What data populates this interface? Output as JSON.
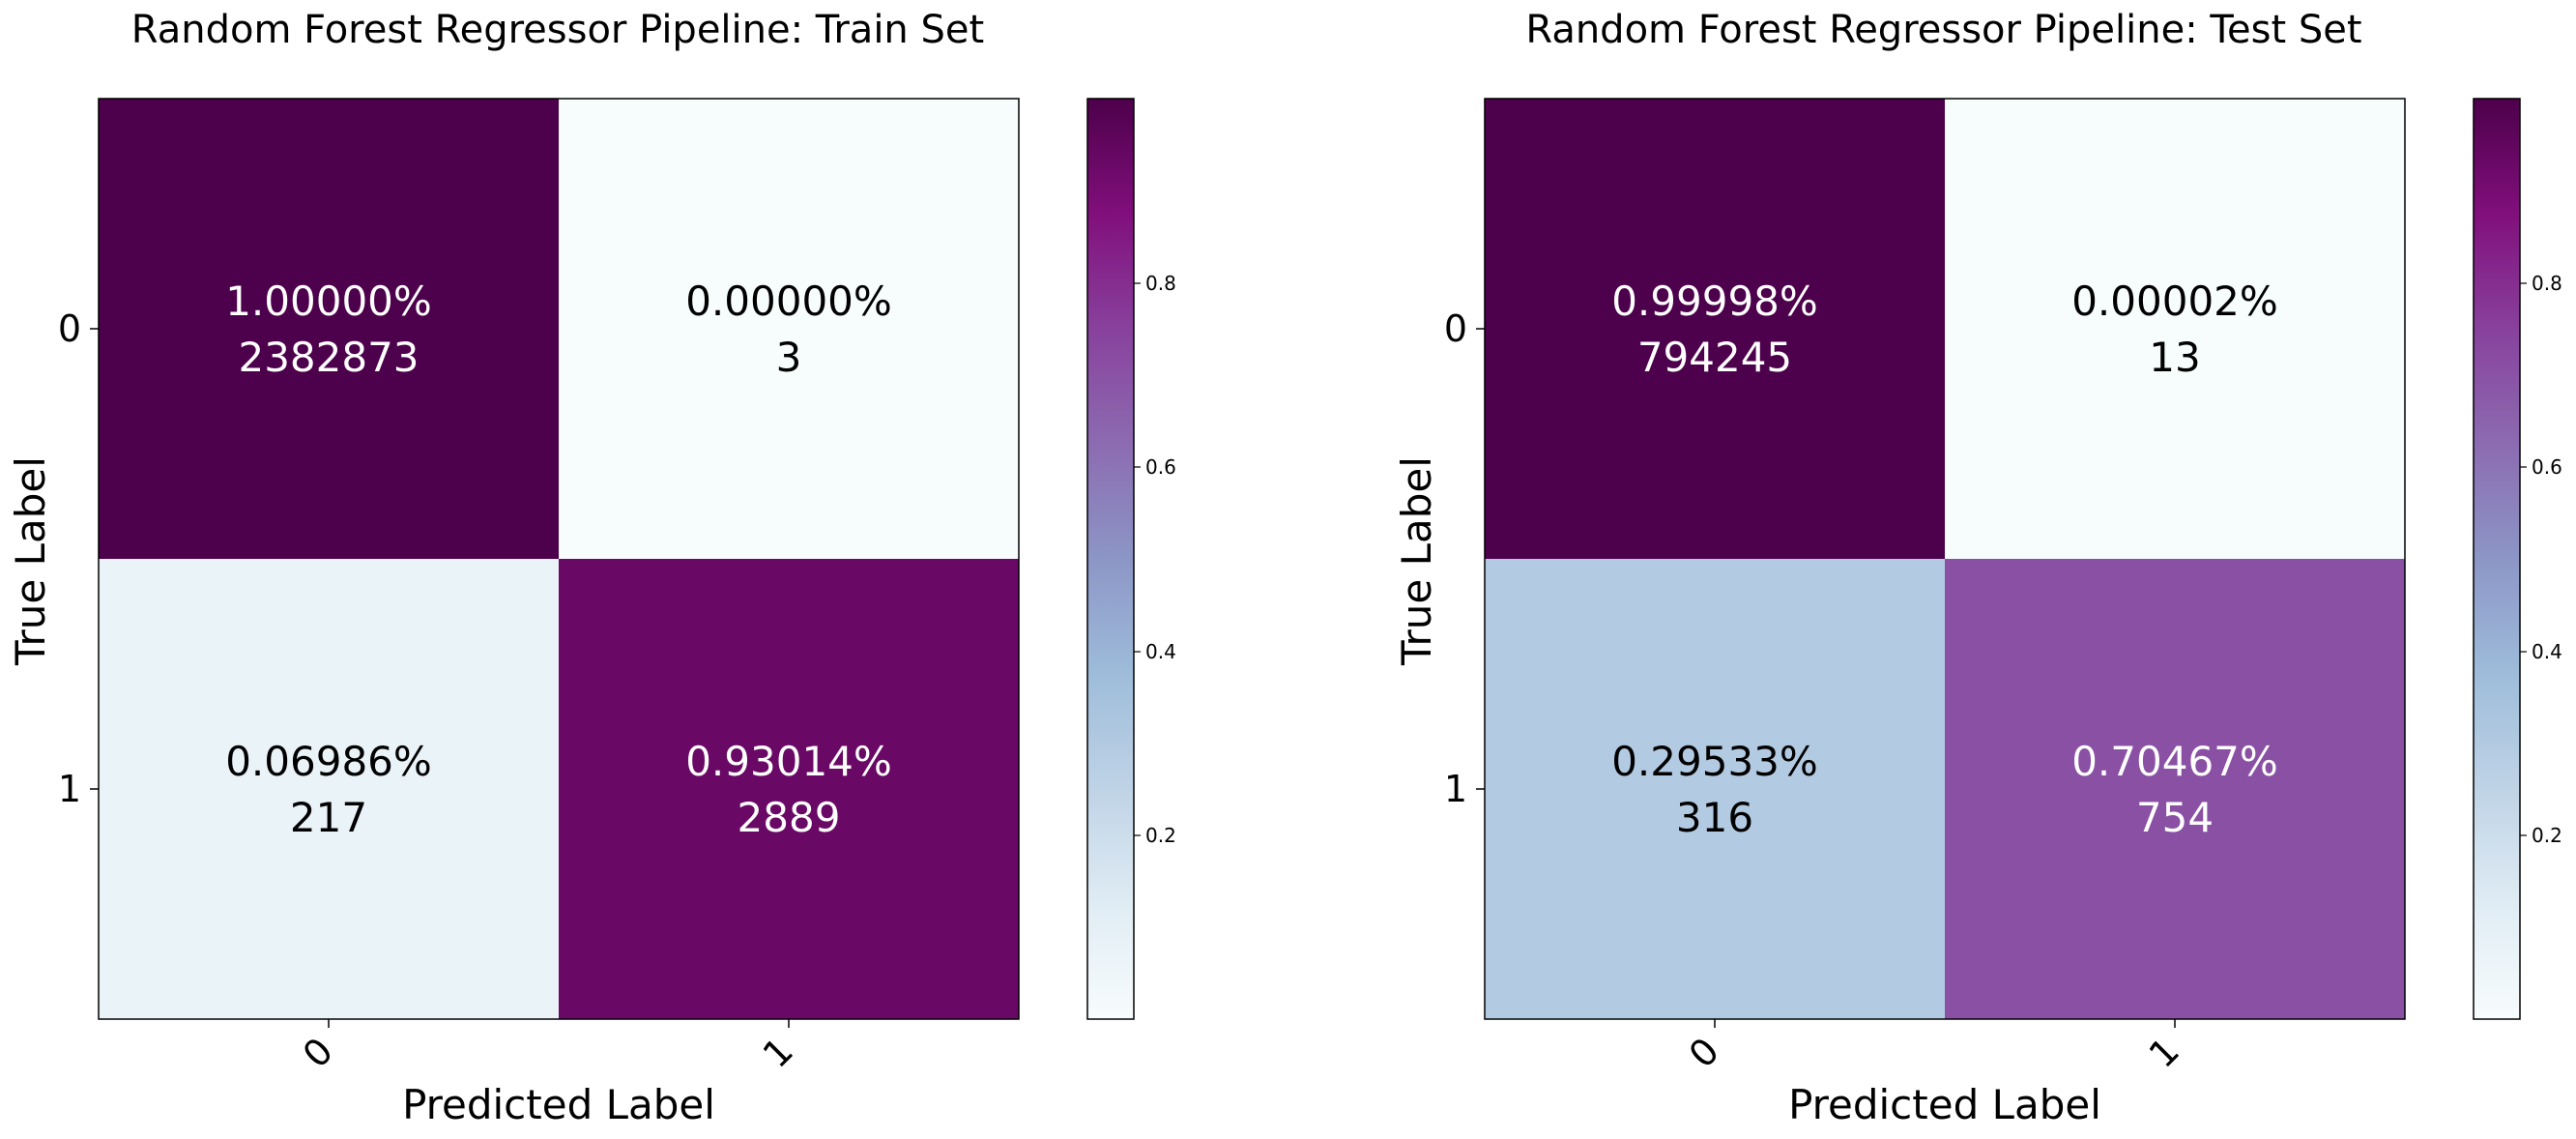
{
  "chart_data": [
    {
      "type": "heatmap",
      "title": "Random Forest Regressor Pipeline: Train Set",
      "xlabel": "Predicted Label",
      "ylabel": "True Label",
      "x_categories": [
        "0",
        "1"
      ],
      "y_categories": [
        "0",
        "1"
      ],
      "cells": [
        [
          {
            "fraction": 1.0,
            "percent_label": "1.00000%",
            "count": 2382873
          },
          {
            "fraction": 0.0,
            "percent_label": "0.00000%",
            "count": 3
          }
        ],
        [
          {
            "fraction": 0.06986,
            "percent_label": "0.06986%",
            "count": 217
          },
          {
            "fraction": 0.93014,
            "percent_label": "0.93014%",
            "count": 2889
          }
        ]
      ],
      "colorbar": {
        "colormap": "BuPu",
        "range": [
          0.0,
          1.0
        ],
        "ticks": [
          0.2,
          0.4,
          0.6,
          0.8
        ],
        "tick_labels": [
          "0.2",
          "0.4",
          "0.6",
          "0.8"
        ]
      },
      "grid": false
    },
    {
      "type": "heatmap",
      "title": "Random Forest Regressor Pipeline: Test Set",
      "xlabel": "Predicted Label",
      "ylabel": "True Label",
      "x_categories": [
        "0",
        "1"
      ],
      "y_categories": [
        "0",
        "1"
      ],
      "cells": [
        [
          {
            "fraction": 0.99998,
            "percent_label": "0.99998%",
            "count": 794245
          },
          {
            "fraction": 2e-05,
            "percent_label": "0.00002%",
            "count": 13
          }
        ],
        [
          {
            "fraction": 0.29533,
            "percent_label": "0.29533%",
            "count": 316
          },
          {
            "fraction": 0.70467,
            "percent_label": "0.70467%",
            "count": 754
          }
        ]
      ],
      "colorbar": {
        "colormap": "BuPu",
        "range": [
          0.0,
          1.0
        ],
        "ticks": [
          0.2,
          0.4,
          0.6,
          0.8
        ],
        "tick_labels": [
          "0.2",
          "0.4",
          "0.6",
          "0.8"
        ]
      },
      "grid": false
    }
  ]
}
